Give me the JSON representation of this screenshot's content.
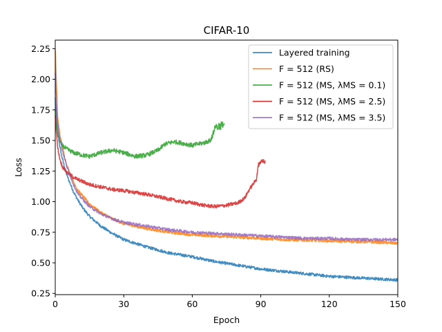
{
  "chart_data": {
    "type": "line",
    "title": "CIFAR-10",
    "xlabel": "Epoch",
    "ylabel": "Loss",
    "xlim": [
      0,
      150
    ],
    "ylim": [
      0.24,
      2.32
    ],
    "xticks": [
      0,
      30,
      60,
      90,
      120,
      150
    ],
    "xtick_labels": [
      "0",
      "30",
      "60",
      "90",
      "120",
      "150"
    ],
    "yticks": [
      0.25,
      0.5,
      0.75,
      1.0,
      1.25,
      1.5,
      1.75,
      2.0,
      2.25
    ],
    "ytick_labels": [
      "0.25",
      "0.50",
      "0.75",
      "1.00",
      "1.25",
      "1.50",
      "1.75",
      "2.00",
      "2.25"
    ],
    "legend_position": "top-right",
    "series": [
      {
        "name": "Layered training",
        "color": "#1f77b4",
        "noise": 0.012,
        "x": [
          0,
          1,
          2,
          3,
          5,
          8,
          10,
          12,
          15,
          20,
          25,
          30,
          40,
          50,
          60,
          70,
          80,
          90,
          100,
          110,
          120,
          130,
          140,
          150
        ],
        "y": [
          1.85,
          1.58,
          1.45,
          1.36,
          1.22,
          1.08,
          1.01,
          0.95,
          0.88,
          0.8,
          0.74,
          0.69,
          0.63,
          0.58,
          0.55,
          0.51,
          0.48,
          0.45,
          0.43,
          0.41,
          0.39,
          0.38,
          0.37,
          0.36
        ]
      },
      {
        "name": "F = 512 (RS)",
        "color": "#ff7f0e",
        "noise": 0.012,
        "x": [
          0,
          1,
          2,
          3,
          5,
          8,
          10,
          15,
          20,
          25,
          30,
          40,
          50,
          60,
          70,
          80,
          90,
          100,
          110,
          120,
          130,
          140,
          150
        ],
        "y": [
          2.25,
          1.7,
          1.55,
          1.45,
          1.3,
          1.16,
          1.09,
          0.98,
          0.91,
          0.86,
          0.82,
          0.78,
          0.75,
          0.73,
          0.72,
          0.71,
          0.7,
          0.69,
          0.685,
          0.68,
          0.675,
          0.67,
          0.66
        ]
      },
      {
        "name": "F = 512 (MS, λMS = 0.1)",
        "color": "#2ca02c",
        "noise": 0.018,
        "x": [
          0,
          1,
          2,
          3,
          5,
          8,
          10,
          12,
          15,
          20,
          25,
          30,
          35,
          40,
          45,
          48,
          52,
          55,
          60,
          65,
          68,
          70,
          72,
          74
        ],
        "y": [
          1.75,
          1.55,
          1.5,
          1.46,
          1.43,
          1.4,
          1.39,
          1.38,
          1.37,
          1.4,
          1.42,
          1.4,
          1.37,
          1.38,
          1.42,
          1.47,
          1.49,
          1.48,
          1.46,
          1.48,
          1.5,
          1.6,
          1.62,
          1.63
        ]
      },
      {
        "name": "F = 512 (MS, λMS = 2.5)",
        "color": "#d62728",
        "noise": 0.015,
        "x": [
          0,
          1,
          2,
          3,
          5,
          8,
          10,
          15,
          20,
          25,
          30,
          40,
          50,
          55,
          60,
          65,
          70,
          75,
          80,
          83,
          85,
          88,
          89,
          90,
          92
        ],
        "y": [
          1.7,
          1.45,
          1.35,
          1.29,
          1.24,
          1.2,
          1.18,
          1.14,
          1.12,
          1.1,
          1.09,
          1.06,
          1.02,
          1.0,
          0.99,
          0.97,
          0.96,
          0.97,
          0.99,
          1.03,
          1.1,
          1.18,
          1.3,
          1.33,
          1.33
        ]
      },
      {
        "name": "F = 512 (MS, λMS = 3.5)",
        "color": "#9467bd",
        "noise": 0.012,
        "x": [
          0,
          1,
          2,
          3,
          5,
          8,
          10,
          15,
          20,
          25,
          30,
          40,
          50,
          60,
          70,
          80,
          90,
          100,
          110,
          120,
          130,
          140,
          150
        ],
        "y": [
          2.05,
          1.65,
          1.52,
          1.43,
          1.29,
          1.14,
          1.06,
          0.96,
          0.9,
          0.86,
          0.83,
          0.8,
          0.77,
          0.75,
          0.74,
          0.73,
          0.72,
          0.71,
          0.7,
          0.7,
          0.69,
          0.69,
          0.69
        ]
      }
    ]
  },
  "legend": {
    "entries": [
      {
        "prefix": "",
        "text": "Layered training"
      },
      {
        "prefix": "F = 512 ",
        "text": "(RS)"
      },
      {
        "prefix": "F = 512 ",
        "text": "(MS, λMS = 0.1)"
      },
      {
        "prefix": "F = 512 ",
        "text": "(MS, λMS = 2.5)"
      },
      {
        "prefix": "F = 512 ",
        "text": "(MS, λMS = 3.5)"
      }
    ]
  }
}
